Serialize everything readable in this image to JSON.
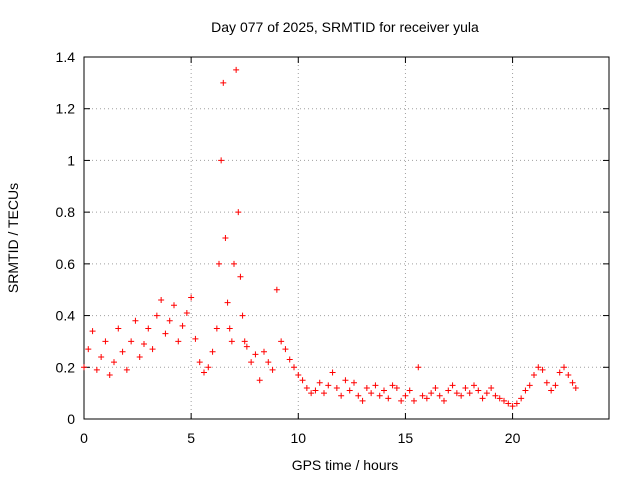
{
  "chart_data": {
    "type": "scatter",
    "title": "Day 077 of 2025, SRMTID for receiver yula",
    "xlabel": "GPS time / hours",
    "ylabel": "SRMTID / TECUs",
    "xlim": [
      0,
      24.5
    ],
    "ylim": [
      0,
      1.4
    ],
    "x_ticks": [
      0,
      5,
      10,
      15,
      20
    ],
    "x_tick_labels": [
      "0",
      "5",
      "10",
      "15",
      "20"
    ],
    "y_ticks": [
      0,
      0.2,
      0.4,
      0.6,
      0.8,
      1.0,
      1.2,
      1.4
    ],
    "y_tick_labels": [
      "0",
      "0.2",
      "0.4",
      "0.6",
      "0.8",
      "1",
      "1.2",
      "1.4"
    ],
    "grid": true,
    "marker": "+",
    "series": [
      {
        "name": "SRMTID",
        "color": "#ff0000",
        "x": [
          0.0,
          0.2,
          0.4,
          0.6,
          0.8,
          1.0,
          1.2,
          1.4,
          1.6,
          1.8,
          2.0,
          2.2,
          2.4,
          2.6,
          2.8,
          3.0,
          3.2,
          3.4,
          3.6,
          3.8,
          4.0,
          4.2,
          4.4,
          4.6,
          4.8,
          5.0,
          5.2,
          5.4,
          5.6,
          5.8,
          6.0,
          6.2,
          6.3,
          6.4,
          6.5,
          6.6,
          6.7,
          6.8,
          6.9,
          7.0,
          7.1,
          7.2,
          7.3,
          7.4,
          7.5,
          7.6,
          7.8,
          8.0,
          8.2,
          8.4,
          8.6,
          8.8,
          9.0,
          9.2,
          9.4,
          9.6,
          9.8,
          10.0,
          10.2,
          10.4,
          10.6,
          10.8,
          11.0,
          11.2,
          11.4,
          11.6,
          11.8,
          12.0,
          12.2,
          12.4,
          12.6,
          12.8,
          13.0,
          13.2,
          13.4,
          13.6,
          13.8,
          14.0,
          14.2,
          14.4,
          14.6,
          14.8,
          15.0,
          15.2,
          15.4,
          15.6,
          15.8,
          16.0,
          16.2,
          16.4,
          16.6,
          16.8,
          17.0,
          17.2,
          17.4,
          17.6,
          17.8,
          18.0,
          18.2,
          18.4,
          18.6,
          18.8,
          19.0,
          19.2,
          19.4,
          19.6,
          19.8,
          20.0,
          20.2,
          20.4,
          20.6,
          20.8,
          21.0,
          21.2,
          21.4,
          21.6,
          21.8,
          22.0,
          22.2,
          22.4,
          22.6,
          22.8,
          22.95
        ],
        "y": [
          0.2,
          0.27,
          0.34,
          0.19,
          0.24,
          0.3,
          0.17,
          0.22,
          0.35,
          0.26,
          0.19,
          0.3,
          0.38,
          0.24,
          0.29,
          0.35,
          0.27,
          0.4,
          0.46,
          0.33,
          0.38,
          0.44,
          0.3,
          0.36,
          0.41,
          0.47,
          0.31,
          0.22,
          0.18,
          0.2,
          0.26,
          0.35,
          0.6,
          1.0,
          1.3,
          0.7,
          0.45,
          0.35,
          0.3,
          0.6,
          1.35,
          0.8,
          0.55,
          0.4,
          0.3,
          0.28,
          0.22,
          0.25,
          0.15,
          0.26,
          0.22,
          0.19,
          0.5,
          0.3,
          0.27,
          0.23,
          0.2,
          0.17,
          0.15,
          0.12,
          0.1,
          0.11,
          0.14,
          0.1,
          0.13,
          0.18,
          0.12,
          0.09,
          0.15,
          0.11,
          0.14,
          0.09,
          0.07,
          0.12,
          0.1,
          0.13,
          0.09,
          0.11,
          0.08,
          0.13,
          0.12,
          0.07,
          0.09,
          0.11,
          0.07,
          0.2,
          0.09,
          0.08,
          0.1,
          0.12,
          0.09,
          0.07,
          0.11,
          0.13,
          0.1,
          0.09,
          0.12,
          0.1,
          0.13,
          0.11,
          0.08,
          0.1,
          0.12,
          0.09,
          0.08,
          0.07,
          0.06,
          0.05,
          0.06,
          0.08,
          0.11,
          0.13,
          0.17,
          0.2,
          0.19,
          0.14,
          0.11,
          0.13,
          0.18,
          0.2,
          0.17,
          0.14,
          0.12
        ]
      }
    ]
  }
}
